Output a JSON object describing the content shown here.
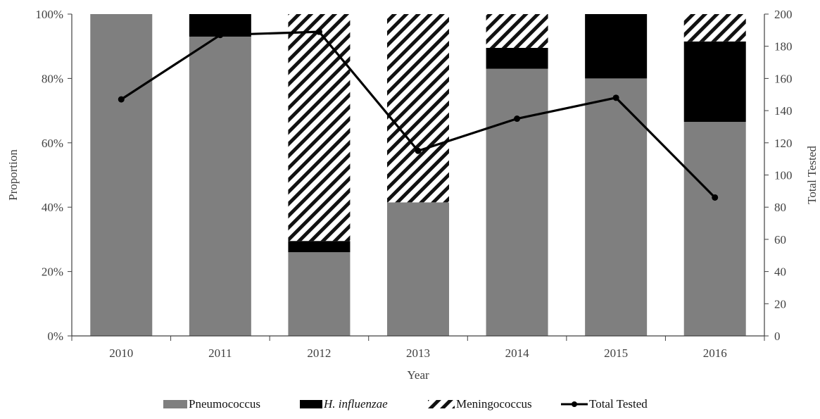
{
  "chart_data": {
    "type": "bar",
    "subtype": "stacked-bar-with-line",
    "categories": [
      "2010",
      "2011",
      "2012",
      "2013",
      "2014",
      "2015",
      "2016"
    ],
    "xlabel": "Year",
    "ylabel": "Proportion",
    "y2label": "Total Tested",
    "ylim": [
      0,
      100
    ],
    "y2lim": [
      0,
      200
    ],
    "y_ticks": [
      "0%",
      "20%",
      "40%",
      "60%",
      "80%",
      "100%"
    ],
    "y2_ticks": [
      "0",
      "20",
      "40",
      "60",
      "80",
      "100",
      "120",
      "140",
      "160",
      "180",
      "200"
    ],
    "grid": false,
    "legend_position": "bottom",
    "series": [
      {
        "name": "Pneumococcus",
        "kind": "bar",
        "color": "#7f7f7f",
        "pattern": "solid",
        "values": [
          100,
          93,
          26,
          41.5,
          83,
          80,
          66.5
        ]
      },
      {
        "name": "H. influenzae",
        "kind": "bar",
        "color": "#000000",
        "pattern": "solid",
        "values": [
          0,
          7,
          3.5,
          0,
          6.5,
          20,
          25
        ]
      },
      {
        "name": "Meningococcus",
        "kind": "bar",
        "color": "#000000",
        "pattern": "diagonal-hatch",
        "values": [
          0,
          0,
          70.5,
          58.5,
          10.5,
          0,
          8.5
        ]
      },
      {
        "name": "Total Tested",
        "kind": "line",
        "axis": "right",
        "color": "#000000",
        "values": [
          147,
          187,
          189,
          115,
          135,
          148,
          86
        ]
      }
    ]
  }
}
